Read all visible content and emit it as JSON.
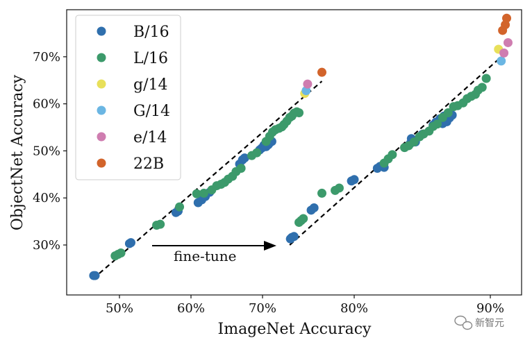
{
  "chart_data": {
    "type": "scatter",
    "xlabel": "ImageNet Accuracy",
    "ylabel": "ObjectNet Accuracy",
    "ylim": [
      20,
      80
    ],
    "grid": false,
    "legend_position": "top-left",
    "yticks": [
      30,
      40,
      50,
      60,
      70
    ],
    "ytick_labels": [
      "30%",
      "40%",
      "50%",
      "60%",
      "70%"
    ],
    "segments": [
      {
        "name": "left",
        "xticks": [
          50,
          60,
          70
        ],
        "xtick_labels": [
          "50%",
          "60%",
          "70%"
        ]
      },
      {
        "name": "right",
        "xticks": [
          80,
          90
        ],
        "xtick_labels": [
          "80%",
          "90%"
        ]
      }
    ],
    "trend_lines": [
      {
        "segment": "left",
        "from": [
          46.3,
          22.8
        ],
        "to": [
          78.3,
          64.8
        ]
      },
      {
        "segment": "right",
        "from": [
          73.8,
          30.0
        ],
        "to": [
          91.2,
          71.0
        ]
      }
    ],
    "annotation": {
      "text": "fine-tune",
      "arrow": "right"
    },
    "series": [
      {
        "name": "B/16",
        "color": "#2f6fad",
        "points": [
          [
            46.4,
            23.5
          ],
          [
            46.6,
            23.5
          ],
          [
            51.4,
            30.3
          ],
          [
            51.6,
            30.5
          ],
          [
            57.9,
            36.9
          ],
          [
            58.2,
            37.2
          ],
          [
            61.0,
            39.0
          ],
          [
            61.5,
            39.6
          ],
          [
            62.0,
            40.3
          ],
          [
            62.6,
            41.2
          ],
          [
            66.8,
            47.2
          ],
          [
            67.2,
            48.1
          ],
          [
            67.5,
            48.5
          ],
          [
            69.6,
            50.2
          ],
          [
            69.9,
            50.6
          ],
          [
            70.2,
            51.2
          ],
          [
            70.4,
            51.5
          ],
          [
            70.5,
            50.9
          ],
          [
            70.8,
            51.3
          ],
          [
            71.0,
            51.7
          ],
          [
            71.3,
            52.0
          ],
          [
            73.9,
            31.3
          ],
          [
            74.1,
            31.6
          ],
          [
            74.4,
            31.8
          ],
          [
            76.8,
            37.4
          ],
          [
            77.2,
            37.9
          ],
          [
            79.8,
            43.6
          ],
          [
            80.0,
            43.9
          ],
          [
            81.7,
            46.3
          ],
          [
            81.9,
            46.7
          ],
          [
            82.2,
            46.5
          ],
          [
            84.1,
            51.5
          ],
          [
            84.5,
            51.9
          ],
          [
            84.2,
            52.6
          ],
          [
            85.0,
            53.5
          ],
          [
            85.8,
            55.5
          ],
          [
            86.0,
            56.1
          ],
          [
            86.3,
            56.8
          ],
          [
            86.5,
            55.8
          ],
          [
            86.8,
            56.2
          ],
          [
            87.0,
            57.0
          ],
          [
            87.2,
            57.6
          ],
          [
            86.6,
            57.4
          ]
        ]
      },
      {
        "name": "L/16",
        "color": "#3c9a6b",
        "points": [
          [
            49.4,
            27.7
          ],
          [
            49.8,
            28.0
          ],
          [
            50.2,
            28.3
          ],
          [
            55.2,
            34.2
          ],
          [
            55.7,
            34.4
          ],
          [
            58.4,
            38.1
          ],
          [
            60.8,
            40.9
          ],
          [
            61.8,
            41.0
          ],
          [
            62.9,
            41.7
          ],
          [
            63.6,
            42.6
          ],
          [
            64.2,
            42.9
          ],
          [
            64.7,
            43.3
          ],
          [
            65.2,
            44.0
          ],
          [
            65.8,
            44.6
          ],
          [
            66.3,
            45.6
          ],
          [
            67.0,
            46.3
          ],
          [
            68.5,
            49.0
          ],
          [
            69.2,
            49.6
          ],
          [
            70.5,
            52.0
          ],
          [
            71.0,
            53.1
          ],
          [
            71.4,
            54.0
          ],
          [
            71.8,
            54.5
          ],
          [
            72.3,
            54.8
          ],
          [
            72.7,
            55.1
          ],
          [
            73.0,
            55.6
          ],
          [
            73.4,
            56.3
          ],
          [
            73.8,
            57.1
          ],
          [
            74.1,
            57.4
          ],
          [
            74.4,
            58.0
          ],
          [
            74.8,
            58.3
          ],
          [
            75.1,
            58.1
          ],
          [
            75.1,
            34.8
          ],
          [
            75.4,
            35.2
          ],
          [
            75.7,
            35.6
          ],
          [
            78.3,
            41.0
          ],
          [
            78.6,
            41.6
          ],
          [
            78.9,
            42.1
          ],
          [
            82.2,
            47.4
          ],
          [
            82.5,
            48.3
          ],
          [
            82.8,
            49.2
          ],
          [
            83.7,
            50.7
          ],
          [
            84.0,
            51.1
          ],
          [
            84.4,
            51.9
          ],
          [
            84.8,
            53.0
          ],
          [
            85.1,
            53.6
          ],
          [
            85.5,
            54.2
          ],
          [
            85.8,
            55.2
          ],
          [
            86.1,
            55.7
          ],
          [
            86.5,
            57.1
          ],
          [
            86.9,
            58.1
          ],
          [
            87.3,
            59.4
          ],
          [
            87.6,
            59.6
          ],
          [
            88.0,
            60.2
          ],
          [
            88.3,
            61.1
          ],
          [
            88.6,
            61.6
          ],
          [
            88.9,
            62.0
          ],
          [
            89.1,
            62.9
          ],
          [
            89.4,
            63.5
          ],
          [
            89.7,
            65.4
          ]
        ]
      },
      {
        "name": "g/14",
        "color": "#e8e05a",
        "points": [
          [
            75.9,
            62.2
          ],
          [
            90.6,
            71.6
          ]
        ]
      },
      {
        "name": "G/14",
        "color": "#6bb6e3",
        "points": [
          [
            76.1,
            62.8
          ],
          [
            90.8,
            69.1
          ]
        ]
      },
      {
        "name": "e/14",
        "color": "#cf7db0",
        "points": [
          [
            76.3,
            64.2
          ],
          [
            91.0,
            70.8
          ],
          [
            91.3,
            73.0
          ]
        ]
      },
      {
        "name": "22B",
        "color": "#d2642b",
        "points": [
          [
            78.3,
            66.7
          ],
          [
            90.9,
            75.6
          ],
          [
            91.1,
            76.8
          ],
          [
            91.2,
            78.2
          ]
        ]
      }
    ]
  },
  "watermark": {
    "text": "新智元"
  }
}
